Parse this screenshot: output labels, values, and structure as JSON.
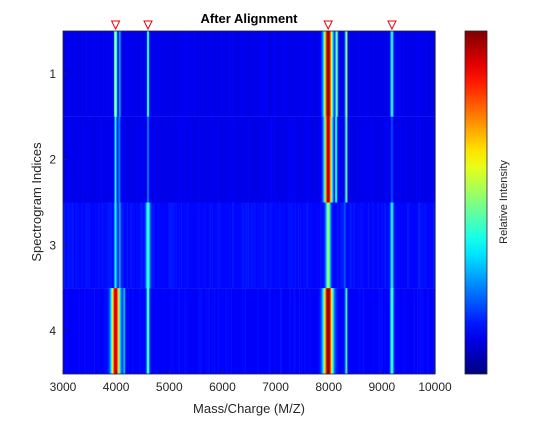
{
  "chart_data": {
    "type": "heatmap",
    "title": "After Alignment",
    "xlabel": "Mass/Charge (M/Z)",
    "ylabel": "Spectrogram Indices",
    "xlim": [
      3000,
      10000
    ],
    "ylim": [
      0.5,
      4.5
    ],
    "y_reversed": true,
    "x_ticks": [
      3000,
      4000,
      5000,
      6000,
      7000,
      8000,
      9000,
      10000
    ],
    "x_tick_labels": [
      "3000",
      "4000",
      "5000",
      "6000",
      "7000",
      "8000",
      "9000",
      "10000"
    ],
    "y_ticks": [
      1,
      2,
      3,
      4
    ],
    "y_tick_labels": [
      "1",
      "2",
      "3",
      "4"
    ],
    "colormap": "jet",
    "colorbar_label": "Relative Intensity",
    "grid": false,
    "peak_markers_mz": [
      3990,
      4600,
      7990,
      9190
    ],
    "peak_marker_color": "#e8000b",
    "rows": [
      {
        "index": 1,
        "background": 0.1,
        "peaks": [
          {
            "mz": 3990,
            "intensity": 0.62,
            "width": 18
          },
          {
            "mz": 4070,
            "intensity": 0.34,
            "width": 12
          },
          {
            "mz": 4600,
            "intensity": 0.48,
            "width": 14
          },
          {
            "mz": 7990,
            "intensity": 1.0,
            "width": 55
          },
          {
            "mz": 8150,
            "intensity": 0.55,
            "width": 16
          },
          {
            "mz": 8330,
            "intensity": 0.62,
            "width": 14
          },
          {
            "mz": 9190,
            "intensity": 0.48,
            "width": 18
          }
        ]
      },
      {
        "index": 2,
        "background": 0.1,
        "peaks": [
          {
            "mz": 3990,
            "intensity": 0.42,
            "width": 16
          },
          {
            "mz": 4060,
            "intensity": 0.3,
            "width": 12
          },
          {
            "mz": 4600,
            "intensity": 0.28,
            "width": 12
          },
          {
            "mz": 7990,
            "intensity": 0.97,
            "width": 50
          },
          {
            "mz": 8140,
            "intensity": 0.45,
            "width": 14
          },
          {
            "mz": 8330,
            "intensity": 0.55,
            "width": 14
          },
          {
            "mz": 9190,
            "intensity": 0.22,
            "width": 14
          }
        ]
      },
      {
        "index": 3,
        "background": 0.13,
        "peaks": [
          {
            "mz": 3990,
            "intensity": 0.4,
            "width": 18
          },
          {
            "mz": 4070,
            "intensity": 0.33,
            "width": 12
          },
          {
            "mz": 4600,
            "intensity": 0.45,
            "width": 28
          },
          {
            "mz": 7990,
            "intensity": 0.55,
            "width": 30
          },
          {
            "mz": 8300,
            "intensity": 0.22,
            "width": 14
          },
          {
            "mz": 9190,
            "intensity": 0.45,
            "width": 18
          }
        ]
      },
      {
        "index": 4,
        "background": 0.12,
        "peaks": [
          {
            "mz": 3990,
            "intensity": 0.93,
            "width": 55
          },
          {
            "mz": 4150,
            "intensity": 0.35,
            "width": 14
          },
          {
            "mz": 4600,
            "intensity": 0.48,
            "width": 20
          },
          {
            "mz": 7990,
            "intensity": 1.0,
            "width": 60
          },
          {
            "mz": 8330,
            "intensity": 0.48,
            "width": 14
          },
          {
            "mz": 9190,
            "intensity": 0.5,
            "width": 20
          }
        ]
      }
    ]
  }
}
